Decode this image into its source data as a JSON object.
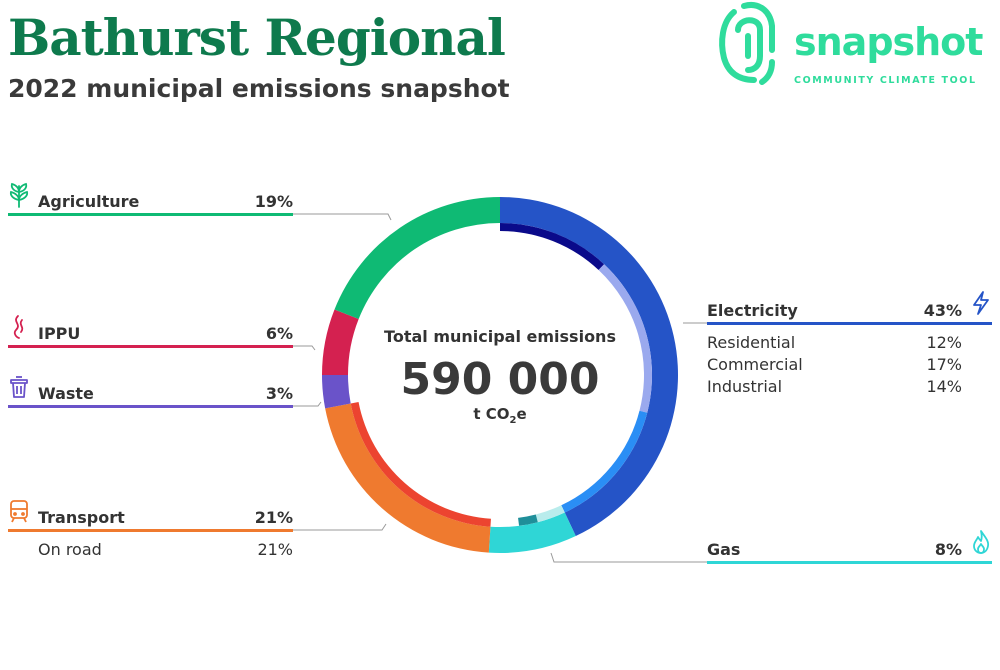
{
  "header": {
    "title": "Bathurst Regional",
    "subtitle": "2022 municipal emissions snapshot"
  },
  "logo": {
    "word": "snapshot",
    "tagline": "COMMUNITY CLIMATE TOOL",
    "color": "#2fdc9c"
  },
  "center": {
    "label": "Total municipal emissions",
    "value": "590 000",
    "unit_prefix": "t CO",
    "unit_sub": "2",
    "unit_suffix": "e"
  },
  "legend": {
    "agriculture": {
      "name": "Agriculture",
      "pct": "19%",
      "color": "#0fba74",
      "icon": "wheat-icon"
    },
    "ippu": {
      "name": "IPPU",
      "pct": "6%",
      "color": "#d42150",
      "icon": "flame-icon"
    },
    "waste": {
      "name": "Waste",
      "pct": "3%",
      "color": "#6a53c9",
      "icon": "trash-icon"
    },
    "transport": {
      "name": "Transport",
      "pct": "21%",
      "color": "#ef7a2f",
      "icon": "train-icon",
      "subs": [
        {
          "name": "On road",
          "pct": "21%"
        }
      ]
    },
    "electricity": {
      "name": "Electricity",
      "pct": "43%",
      "color": "#2554c7",
      "icon": "lightning-icon",
      "subs": [
        {
          "name": "Residential",
          "pct": "12%"
        },
        {
          "name": "Commercial",
          "pct": "17%"
        },
        {
          "name": "Industrial",
          "pct": "14%"
        }
      ]
    },
    "gas": {
      "name": "Gas",
      "pct": "8%",
      "color": "#2fd6d6",
      "icon": "gas-flame-icon"
    }
  },
  "chart_data": {
    "type": "pie",
    "title": "2022 municipal emissions snapshot",
    "total": 590000,
    "total_unit": "t CO2e",
    "series": [
      {
        "name": "Electricity",
        "value": 43,
        "color": "#2554c7",
        "breakdown": [
          {
            "name": "Residential",
            "value": 12,
            "color": "#0a0a8a"
          },
          {
            "name": "Commercial",
            "value": 17,
            "color": "#9aa9ee"
          },
          {
            "name": "Industrial",
            "value": 14,
            "color": "#2a8ef5"
          }
        ]
      },
      {
        "name": "Gas",
        "value": 8,
        "color": "#2fd6d6",
        "breakdown": [
          {
            "name": "Residential",
            "value": 3,
            "color": "#b9ecec"
          },
          {
            "name": "Commercial",
            "value": 2,
            "color": "#1f8f9a"
          }
        ]
      },
      {
        "name": "Transport",
        "value": 21,
        "color": "#ef7a2f",
        "breakdown": [
          {
            "name": "On road",
            "value": 21,
            "color": "#ec4430"
          }
        ]
      },
      {
        "name": "Waste",
        "value": 3,
        "color": "#6a53c9",
        "breakdown": []
      },
      {
        "name": "IPPU",
        "value": 6,
        "color": "#d42150",
        "breakdown": []
      },
      {
        "name": "Agriculture",
        "value": 19,
        "color": "#0fba74",
        "breakdown": []
      }
    ]
  }
}
